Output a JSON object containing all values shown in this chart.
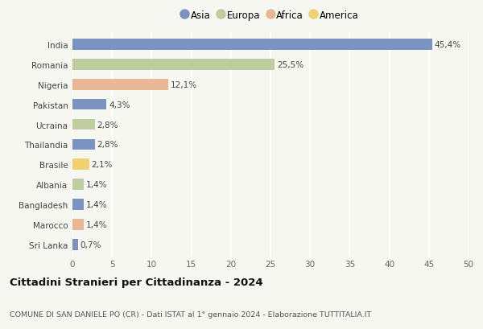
{
  "countries": [
    "India",
    "Romania",
    "Nigeria",
    "Pakistan",
    "Ucraina",
    "Thailandia",
    "Brasile",
    "Albania",
    "Bangladesh",
    "Marocco",
    "Sri Lanka"
  ],
  "values": [
    45.4,
    25.5,
    12.1,
    4.3,
    2.8,
    2.8,
    2.1,
    1.4,
    1.4,
    1.4,
    0.7
  ],
  "labels": [
    "45,4%",
    "25,5%",
    "12,1%",
    "4,3%",
    "2,8%",
    "2,8%",
    "2,1%",
    "1,4%",
    "1,4%",
    "1,4%",
    "0,7%"
  ],
  "continents": [
    "Asia",
    "Europa",
    "Africa",
    "Asia",
    "Europa",
    "Asia",
    "America",
    "Europa",
    "Asia",
    "Africa",
    "Asia"
  ],
  "colors": {
    "Asia": "#7b93c0",
    "Europa": "#bfcc9f",
    "Africa": "#e8b896",
    "America": "#f0d070"
  },
  "legend_order": [
    "Asia",
    "Europa",
    "Africa",
    "America"
  ],
  "legend_colors": [
    "#7b93c0",
    "#bfcc9f",
    "#e8b896",
    "#f0d070"
  ],
  "title": "Cittadini Stranieri per Cittadinanza - 2024",
  "subtitle": "COMUNE DI SAN DANIELE PO (CR) - Dati ISTAT al 1° gennaio 2024 - Elaborazione TUTTITALIA.IT",
  "xlim": [
    0,
    50
  ],
  "xticks": [
    0,
    5,
    10,
    15,
    20,
    25,
    30,
    35,
    40,
    45,
    50
  ],
  "background_color": "#f7f7f2",
  "grid_color": "#ffffff",
  "bar_height": 0.55,
  "label_fontsize": 7.5,
  "ytick_fontsize": 7.5,
  "xtick_fontsize": 7.5
}
